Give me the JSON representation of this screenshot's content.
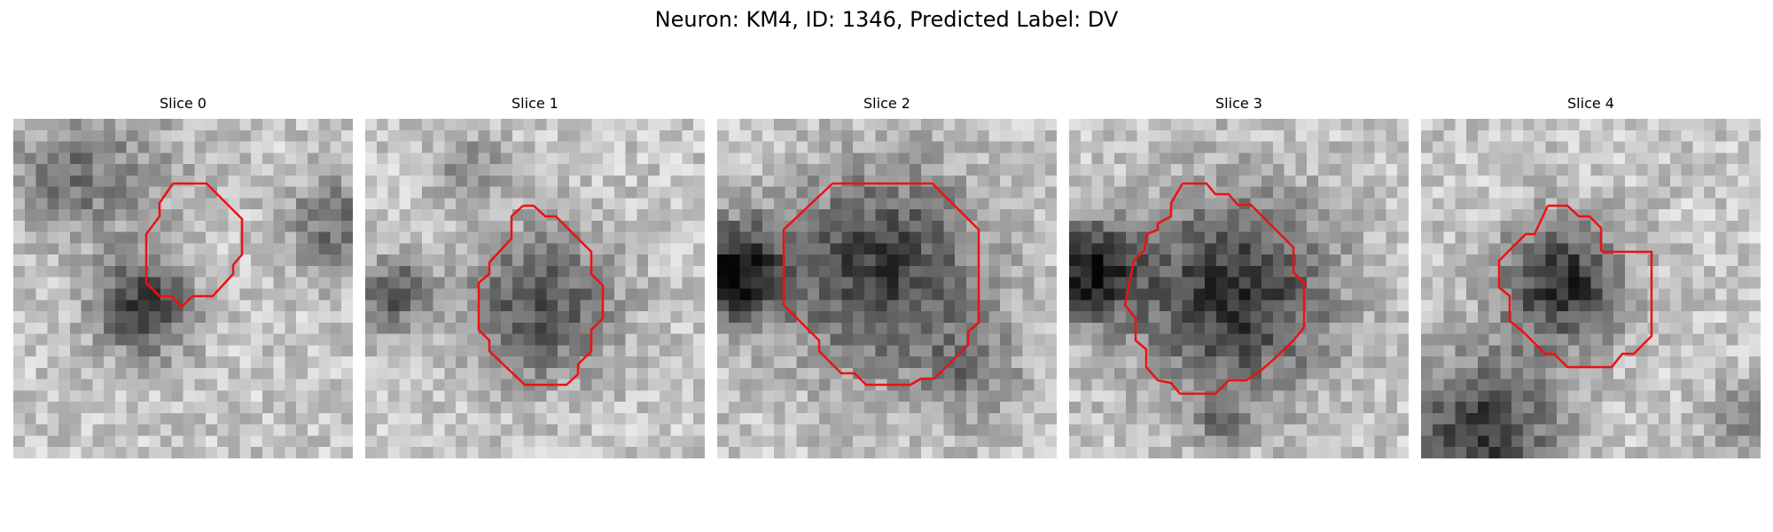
{
  "figure": {
    "title": "Neuron: KM4, ID: 1346, Predicted Label: DV"
  },
  "panels": [
    {
      "title": "Slice 0"
    },
    {
      "title": "Slice 1"
    },
    {
      "title": "Slice 2"
    },
    {
      "title": "Slice 3"
    },
    {
      "title": "Slice 4"
    }
  ],
  "colors": {
    "contour": "#ee1111",
    "background": "#ffffff",
    "image_colormap": "grayscale"
  }
}
